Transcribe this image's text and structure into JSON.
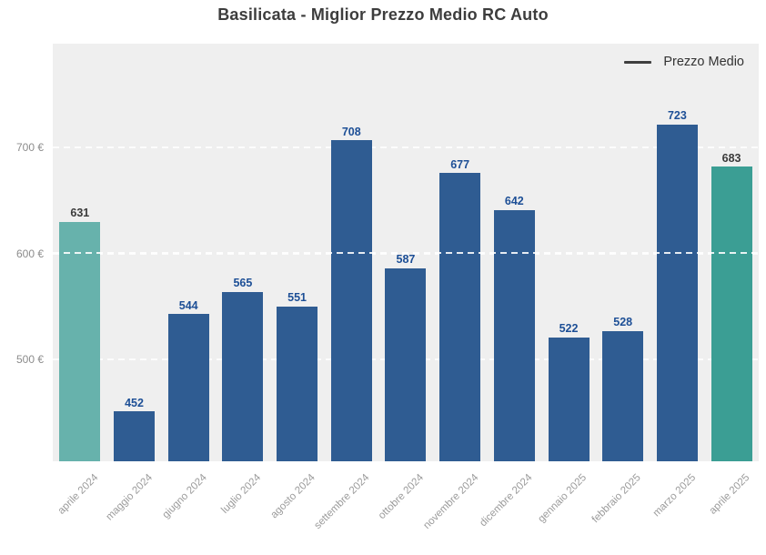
{
  "title": "Basilicata - Miglior Prezzo Medio RC Auto",
  "legend": {
    "label": "Prezzo Medio"
  },
  "chart_data": {
    "type": "bar",
    "title": "Basilicata - Miglior Prezzo Medio RC Auto",
    "categories": [
      "aprile 2024",
      "maggio 2024",
      "giugno 2024",
      "luglio 2024",
      "agosto 2024",
      "settembre 2024",
      "ottobre 2024",
      "novembre 2024",
      "dicembre 2024",
      "gennaio 2025",
      "febbraio 2025",
      "marzo 2025",
      "aprile 2025"
    ],
    "values": [
      631,
      452,
      544,
      565,
      551,
      708,
      587,
      677,
      642,
      522,
      528,
      723,
      683
    ],
    "bar_colors": [
      "#67b2ac",
      "#2f5c92",
      "#2f5c92",
      "#2f5c92",
      "#2f5c92",
      "#2f5c92",
      "#2f5c92",
      "#2f5c92",
      "#2f5c92",
      "#2f5c92",
      "#2f5c92",
      "#2f5c92",
      "#3b9e94"
    ],
    "value_label_colors": [
      "#3a3a3a",
      "#1d4f96",
      "#1d4f96",
      "#1d4f96",
      "#1d4f96",
      "#1d4f96",
      "#1d4f96",
      "#1d4f96",
      "#1d4f96",
      "#1d4f96",
      "#1d4f96",
      "#1d4f96",
      "#3a3a3a"
    ],
    "y_ticks": [
      {
        "label": "500 €",
        "value": 500
      },
      {
        "label": "600 €",
        "value": 600
      },
      {
        "label": "700 €",
        "value": 700
      }
    ],
    "ylim": [
      405,
      799
    ],
    "average_value": 601,
    "average_line_style": "dashed-white",
    "grid": "dashed-white-horizontal",
    "legend_entries": [
      "Prezzo Medio"
    ],
    "legend_position": "top-right",
    "plot_bg": "#efefef",
    "xlabel": "",
    "ylabel": ""
  }
}
